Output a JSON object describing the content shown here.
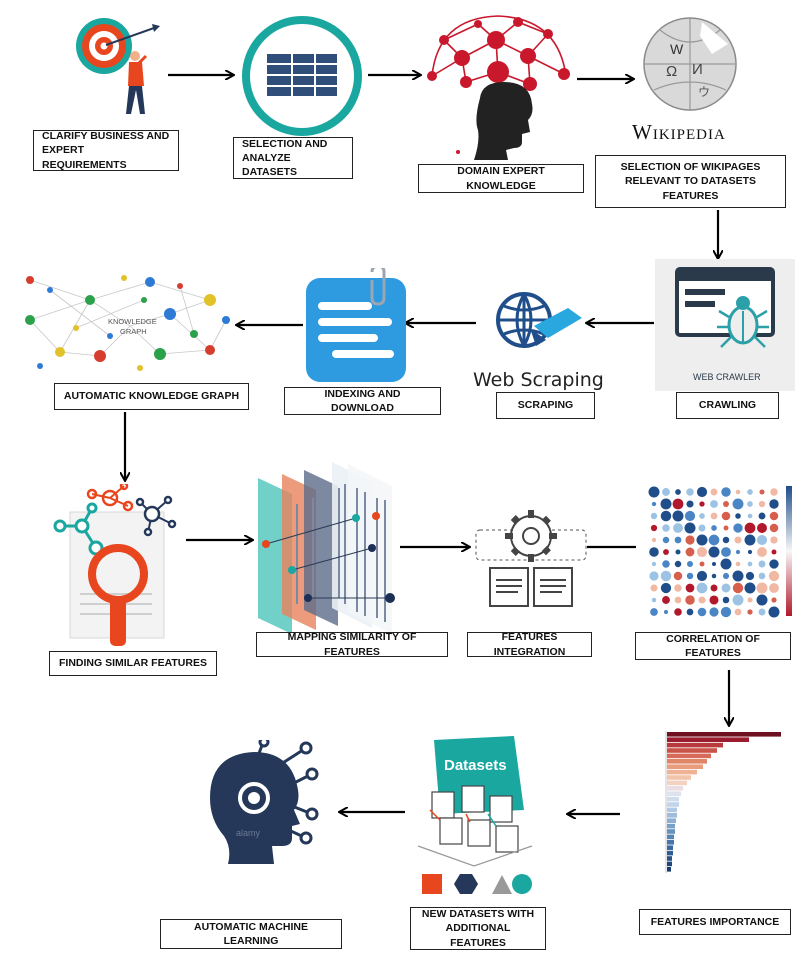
{
  "steps": {
    "clarify": "CLARIFY BUSINESS AND\nEXPERT REQUIREMENTS",
    "selection": "SELECTION AND\nANALYZE DATASETS",
    "domain": "DOMAIN EXPERT KNOWLEDGE",
    "wikipages": "SELECTION OF WIKIPAGES\nRELEVANT TO DATASETS FEATURES",
    "crawling": "CRAWLING",
    "scraping": "SCRAPING",
    "indexing": "INDEXING AND DOWNLOAD",
    "knowledge_graph": "AUTOMATIC KNOWLEDGE GRAPH",
    "finding_similar": "FINDING SIMILAR FEATURES",
    "mapping": "MAPPING SIMILARITY OF FEATURES",
    "integration": "FEATURES INTEGRATION",
    "correlation": "CORRELATION OF FEATURES",
    "importance": "FEATURES IMPORTANCE",
    "new_datasets": "NEW DATASETS WITH\nADDITIONAL FEATURES",
    "automl": "AUTOMATIC MACHINE LEARNING"
  },
  "logos": {
    "wikipedia": "Wikipedia",
    "web_scraping": "Web Scraping",
    "web_crawler": "WEB CRAWLER",
    "knowledge_graph_line1": "KNOWLEDGE",
    "knowledge_graph_line2": "GRAPH",
    "datasets": "Datasets",
    "watermark": "alamy"
  },
  "colors": {
    "accent_orange": "#e8461e",
    "teal": "#1aa7a0",
    "navy": "#25385a",
    "red": "#c9182c",
    "blue_icon": "#2e7bd6"
  }
}
